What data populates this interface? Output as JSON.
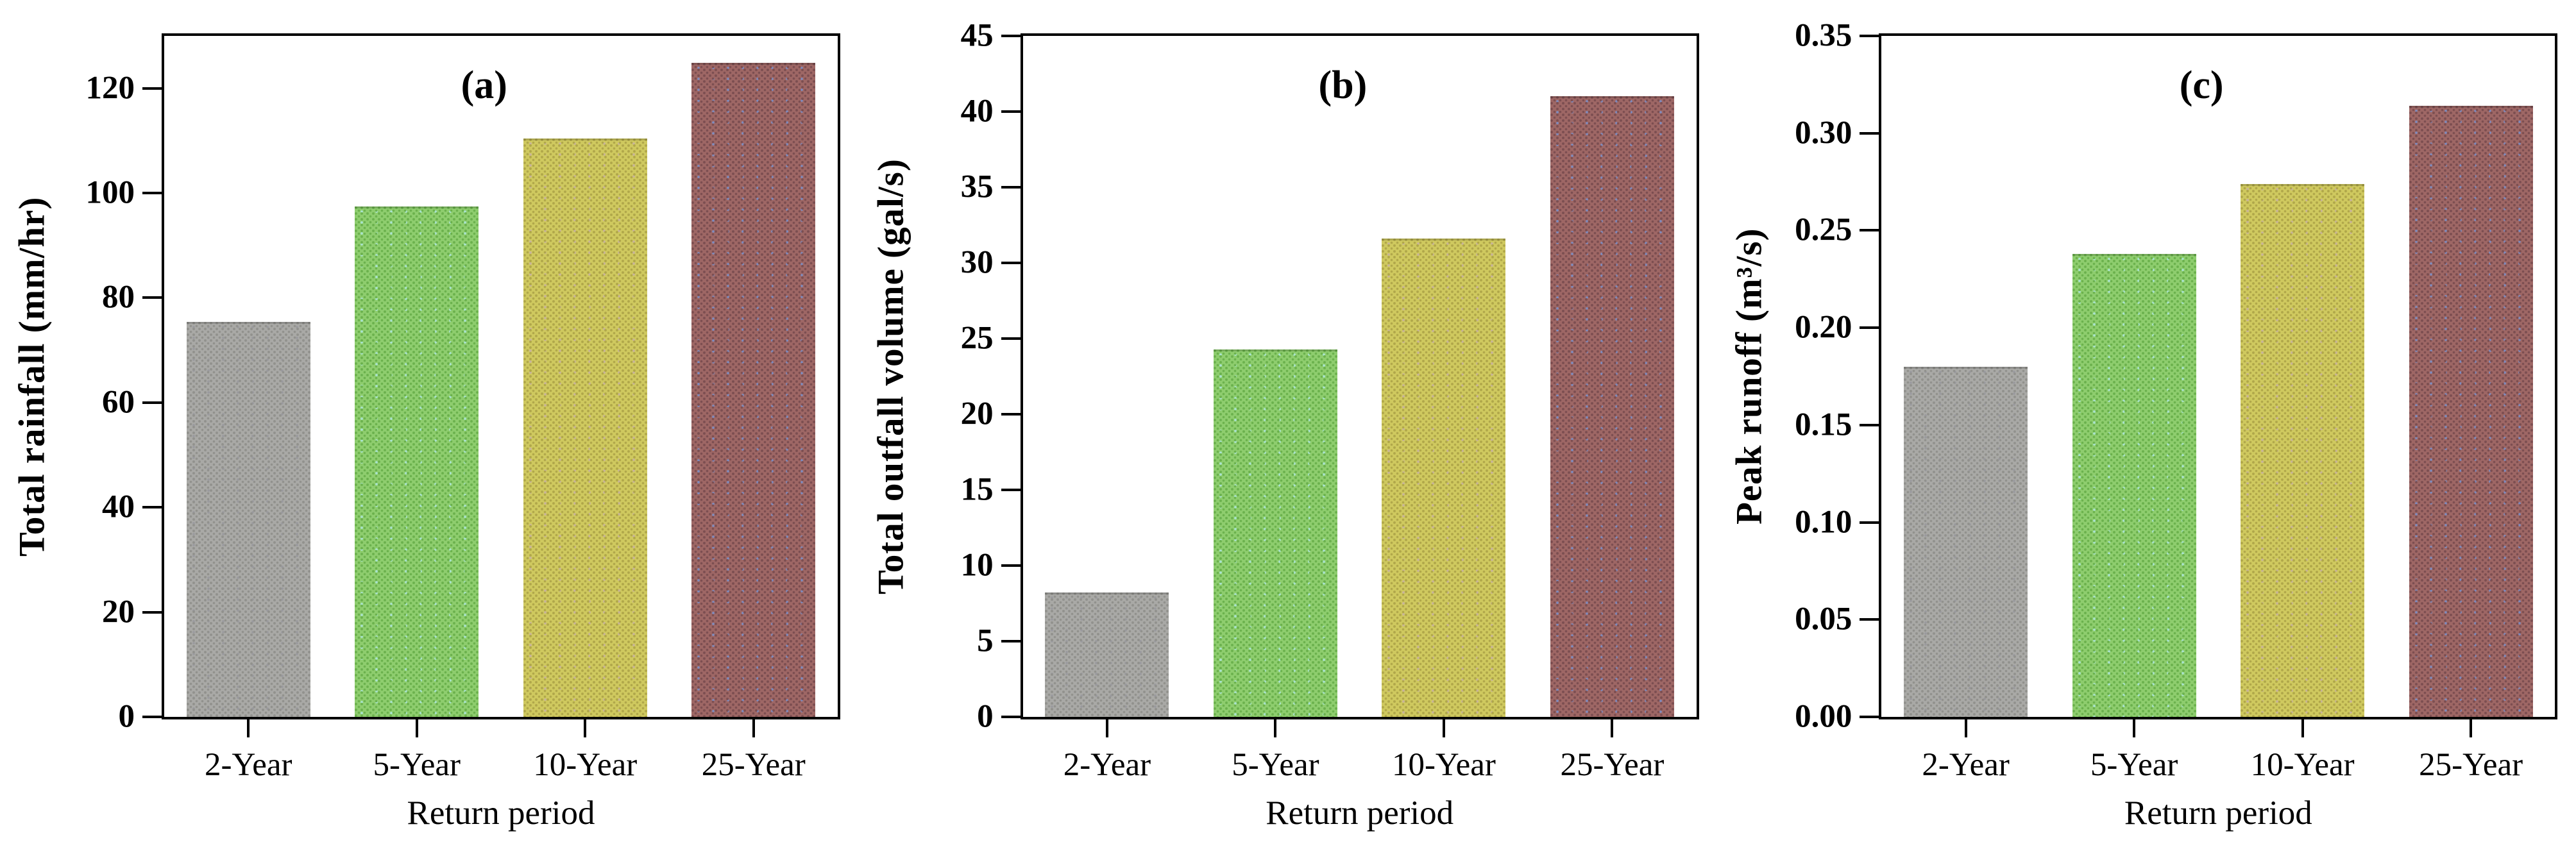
{
  "figure": {
    "background": "#ffffff",
    "axis_color": "#000000",
    "panel_count": 3
  },
  "bar_style": {
    "fill": [
      "#a9a9a6",
      "#8ecd6e",
      "#cfc95f",
      "#9e6765"
    ],
    "dots": [
      "#91918d",
      "#6bb14d",
      "#b0a74a",
      "#7c4e51"
    ],
    "accent_dots": [
      "#9a9a9e",
      "#a9e3cf",
      "#c9b49a",
      "#7f8bbe"
    ]
  },
  "chart_data": [
    {
      "type": "bar",
      "panel_label": "(a)",
      "categories": [
        "2-Year",
        "5-Year",
        "10-Year",
        "25-Year"
      ],
      "values": [
        75.4,
        97.4,
        110.4,
        124.8
      ],
      "title": "",
      "xlabel": "Return period",
      "ylabel": "Total rainfall (mm/hr)",
      "ylim": [
        0,
        130
      ],
      "yticks": [
        0,
        20,
        40,
        60,
        80,
        100,
        120
      ],
      "ytick_labels": [
        "0",
        "20",
        "40",
        "60",
        "80",
        "100",
        "120"
      ],
      "grid": false,
      "legend": false
    },
    {
      "type": "bar",
      "panel_label": "(b)",
      "categories": [
        "2-Year",
        "5-Year",
        "10-Year",
        "25-Year"
      ],
      "values": [
        8.2,
        24.3,
        31.6,
        41.0
      ],
      "title": "",
      "xlabel": "Return period",
      "ylabel": "Total outfall volume (gal/s)",
      "ylim": [
        0,
        45
      ],
      "yticks": [
        0,
        5,
        10,
        15,
        20,
        25,
        30,
        35,
        40,
        45
      ],
      "ytick_labels": [
        "0",
        "5",
        "10",
        "15",
        "20",
        "25",
        "30",
        "35",
        "40",
        "45"
      ],
      "grid": false,
      "legend": false
    },
    {
      "type": "bar",
      "panel_label": "(c)",
      "categories": [
        "2-Year",
        "5-Year",
        "10-Year",
        "25-Year"
      ],
      "values": [
        0.18,
        0.238,
        0.274,
        0.314
      ],
      "title": "",
      "xlabel": "Return period",
      "ylabel": "Peak runoff (m³/s)",
      "ylim": [
        0,
        0.35
      ],
      "yticks": [
        0,
        0.05,
        0.1,
        0.15,
        0.2,
        0.25,
        0.3,
        0.35
      ],
      "ytick_labels": [
        "0.00",
        "0.05",
        "0.10",
        "0.15",
        "0.20",
        "0.25",
        "0.30",
        "0.35"
      ],
      "grid": false,
      "legend": false
    }
  ]
}
